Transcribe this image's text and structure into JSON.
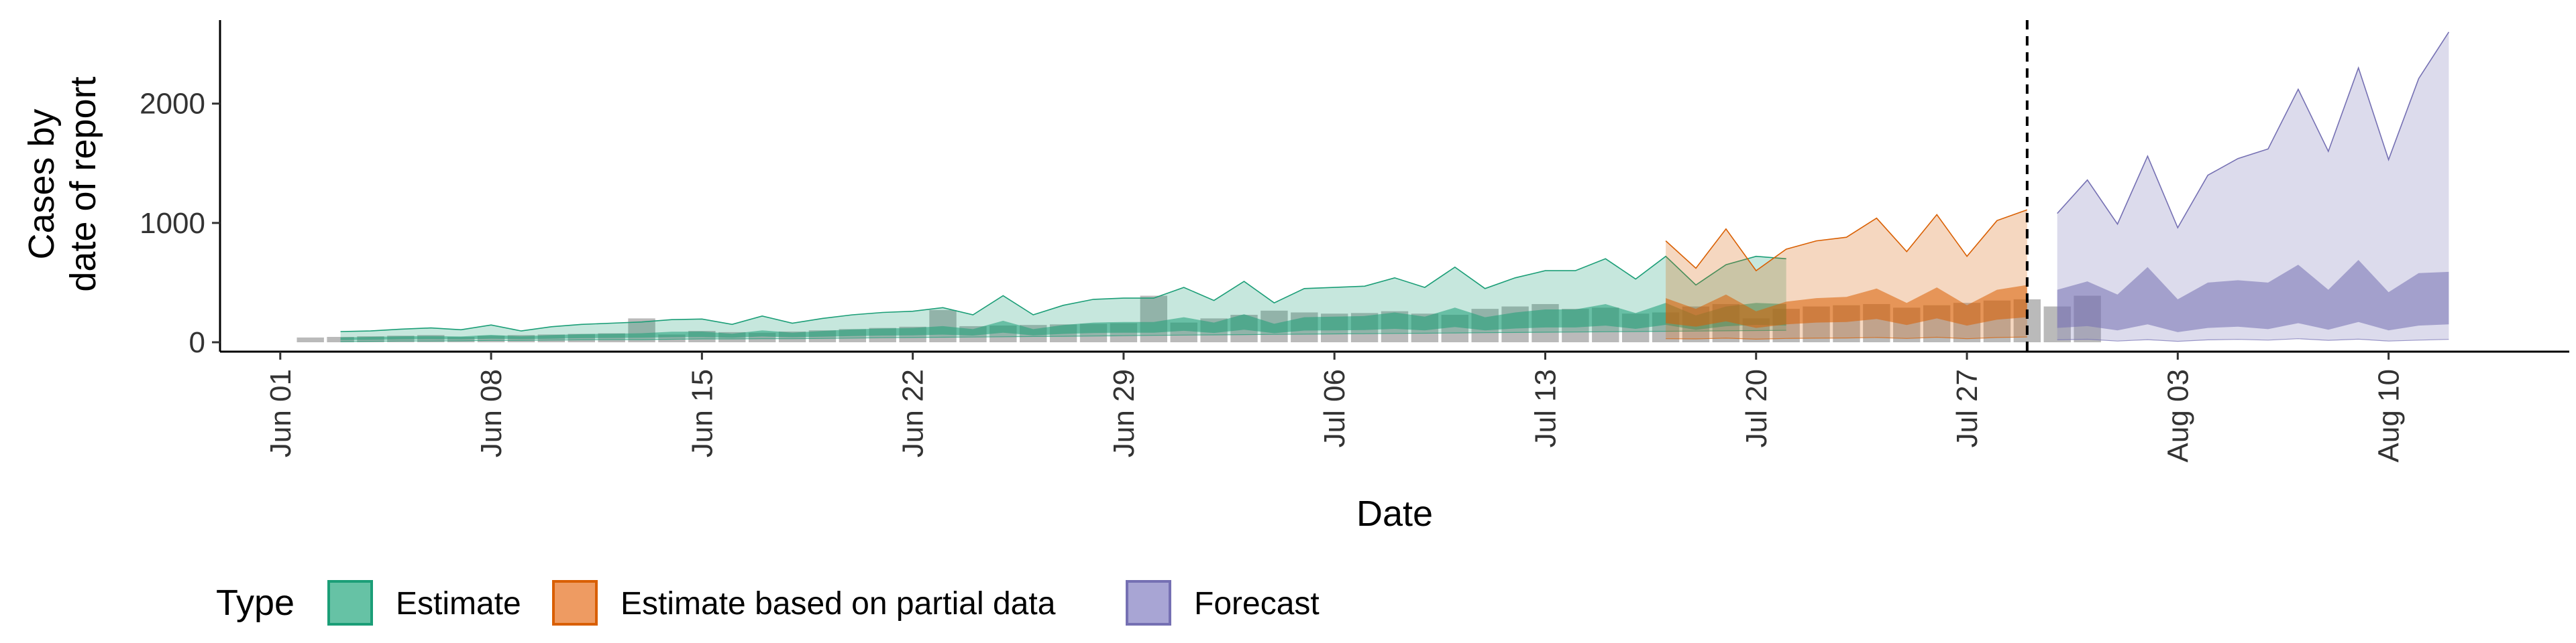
{
  "chart_data": {
    "type": "area",
    "xlabel": "Date",
    "ylabel_lines": [
      "Cases by",
      "date of report"
    ],
    "ylim": [
      0,
      2700
    ],
    "yticks": [
      0,
      1000,
      2000
    ],
    "xlim": [
      "2020-05-30",
      "2020-08-16"
    ],
    "xticks": [
      {
        "date": "2020-06-01",
        "label": "Jun 01"
      },
      {
        "date": "2020-06-08",
        "label": "Jun 08"
      },
      {
        "date": "2020-06-15",
        "label": "Jun 15"
      },
      {
        "date": "2020-06-22",
        "label": "Jun 22"
      },
      {
        "date": "2020-06-29",
        "label": "Jun 29"
      },
      {
        "date": "2020-07-06",
        "label": "Jul 06"
      },
      {
        "date": "2020-07-13",
        "label": "Jul 13"
      },
      {
        "date": "2020-07-20",
        "label": "Jul 20"
      },
      {
        "date": "2020-07-27",
        "label": "Jul 27"
      },
      {
        "date": "2020-08-03",
        "label": "Aug 03"
      },
      {
        "date": "2020-08-10",
        "label": "Aug 10"
      }
    ],
    "forecast_date": "2020-07-29",
    "legend": {
      "title": "Type",
      "position": "bottom",
      "entries": [
        {
          "label": "Estimate",
          "fill": "#66C2A5",
          "stroke": "#1B9E77"
        },
        {
          "label": "Estimate based on partial data",
          "fill": "#EE9B62",
          "stroke": "#D95F02"
        },
        {
          "label": "Forecast",
          "fill": "#A8A5D4",
          "stroke": "#7570B3"
        }
      ]
    },
    "observed_start": "2020-06-02",
    "observed": [
      40,
      45,
      50,
      55,
      60,
      45,
      55,
      60,
      65,
      70,
      75,
      200,
      65,
      95,
      85,
      80,
      90,
      100,
      110,
      120,
      130,
      270,
      135,
      140,
      145,
      150,
      155,
      160,
      390,
      165,
      200,
      230,
      265,
      250,
      240,
      245,
      260,
      240,
      230,
      280,
      300,
      320,
      280,
      290,
      240,
      250,
      300,
      320,
      200,
      280,
      300,
      310,
      320,
      290,
      310,
      330,
      350,
      360,
      300,
      390
    ],
    "series": [
      {
        "name": "Estimate",
        "start": "2020-06-03",
        "color": "#1B9E77",
        "outer_upper": [
          90,
          95,
          110,
          120,
          105,
          145,
          95,
          130,
          150,
          160,
          170,
          190,
          195,
          150,
          220,
          160,
          200,
          230,
          250,
          260,
          290,
          230,
          390,
          230,
          310,
          360,
          370,
          370,
          460,
          350,
          510,
          330,
          450,
          460,
          470,
          540,
          460,
          630,
          450,
          540,
          600,
          600,
          700,
          530,
          720,
          480,
          650,
          720,
          700
        ],
        "outer_lower": [
          5,
          8,
          10,
          10,
          12,
          15,
          15,
          18,
          20,
          22,
          22,
          25,
          28,
          28,
          30,
          30,
          32,
          35,
          38,
          40,
          42,
          44,
          46,
          48,
          50,
          52,
          55,
          58,
          60,
          62,
          64,
          66,
          68,
          70,
          72,
          74,
          76,
          78,
          80,
          82,
          84,
          86,
          88,
          90,
          92,
          94,
          96,
          98,
          100
        ],
        "inner_upper": [
          40,
          45,
          50,
          52,
          48,
          62,
          50,
          60,
          68,
          72,
          76,
          88,
          90,
          72,
          100,
          80,
          95,
          108,
          115,
          120,
          135,
          110,
          180,
          110,
          145,
          165,
          170,
          170,
          210,
          165,
          235,
          155,
          210,
          215,
          220,
          250,
          215,
          290,
          210,
          250,
          275,
          275,
          320,
          245,
          330,
          225,
          300,
          330,
          320
        ],
        "inner_lower": [
          18,
          20,
          24,
          25,
          24,
          30,
          26,
          30,
          34,
          36,
          38,
          42,
          44,
          38,
          48,
          42,
          46,
          52,
          56,
          58,
          64,
          56,
          80,
          58,
          70,
          78,
          80,
          80,
          96,
          78,
          105,
          76,
          98,
          100,
          102,
          112,
          100,
          128,
          100,
          115,
          124,
          124,
          140,
          112,
          146,
          104,
          134,
          146,
          140
        ]
      },
      {
        "name": "Estimate based on partial data",
        "start": "2020-07-17",
        "color": "#D95F02",
        "outer_upper": [
          850,
          620,
          950,
          600,
          780,
          850,
          880,
          1040,
          760,
          1070,
          720,
          1020,
          1110
        ],
        "outer_lower": [
          30,
          28,
          34,
          26,
          32,
          34,
          36,
          40,
          32,
          42,
          30,
          40,
          44
        ],
        "inner_upper": [
          370,
          280,
          400,
          260,
          340,
          370,
          380,
          450,
          330,
          460,
          310,
          440,
          480
        ],
        "inner_lower": [
          160,
          130,
          175,
          120,
          150,
          165,
          170,
          195,
          145,
          200,
          140,
          190,
          210
        ]
      },
      {
        "name": "Forecast",
        "start": "2020-07-30",
        "color": "#7570B3",
        "outer_upper": [
          1080,
          1360,
          990,
          1560,
          960,
          1400,
          1540,
          1620,
          2120,
          1600,
          2300,
          1530,
          2210,
          2600
        ],
        "outer_lower": [
          20,
          25,
          10,
          22,
          8,
          20,
          24,
          18,
          30,
          16,
          26,
          10,
          18,
          24
        ],
        "inner_upper": [
          440,
          510,
          400,
          630,
          360,
          500,
          520,
          500,
          650,
          440,
          690,
          420,
          580,
          590
        ],
        "inner_lower": [
          120,
          135,
          100,
          150,
          85,
          120,
          130,
          110,
          160,
          105,
          170,
          100,
          140,
          150
        ]
      }
    ]
  }
}
